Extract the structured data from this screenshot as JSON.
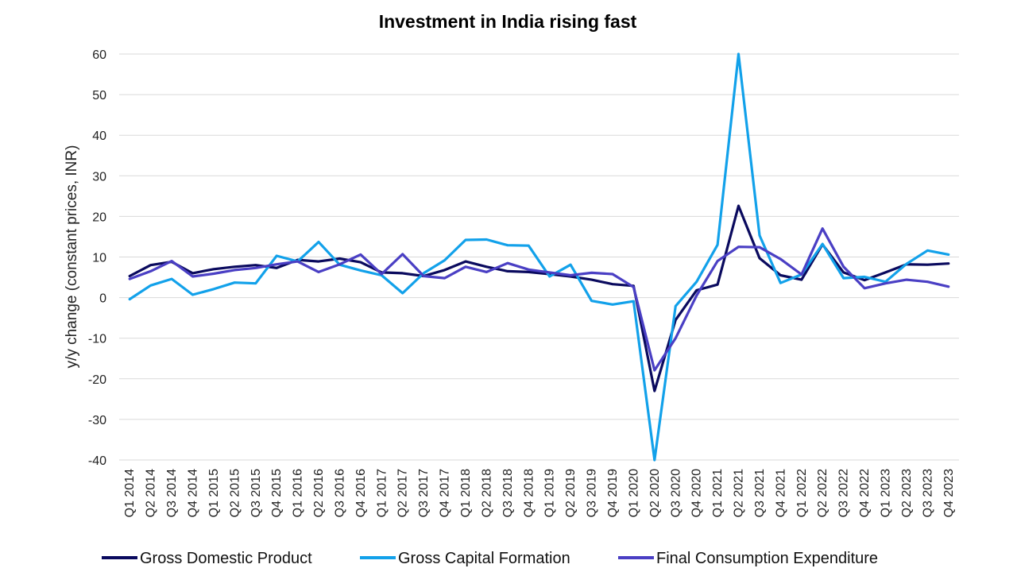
{
  "chart_data": {
    "type": "line",
    "title": "Investment in India rising fast",
    "xlabel": "",
    "ylabel": "y/y change (constant prices, INR)",
    "ylim": [
      -40,
      60
    ],
    "yticks": [
      60,
      50,
      40,
      30,
      20,
      10,
      0,
      -10,
      -20,
      -30,
      -40
    ],
    "grid": "horizontal",
    "legend": "bottom",
    "categories": [
      "Q1 2014",
      "Q2 2014",
      "Q3 2014",
      "Q4 2014",
      "Q1 2015",
      "Q2 2015",
      "Q3 2015",
      "Q4 2015",
      "Q1 2016",
      "Q2 2016",
      "Q3 2016",
      "Q4 2016",
      "Q1 2017",
      "Q2 2017",
      "Q3 2017",
      "Q4 2017",
      "Q1 2018",
      "Q2 2018",
      "Q3 2018",
      "Q4 2018",
      "Q1 2019",
      "Q2 2019",
      "Q3 2019",
      "Q4 2019",
      "Q1 2020",
      "Q2 2020",
      "Q3 2020",
      "Q4 2020",
      "Q1 2021",
      "Q2 2021",
      "Q3 2021",
      "Q4 2021",
      "Q1 2022",
      "Q2 2022",
      "Q3 2022",
      "Q4 2022",
      "Q1 2023",
      "Q2 2023",
      "Q3 2023",
      "Q4 2023"
    ],
    "series": [
      {
        "name": "Gross Domestic Product",
        "color": "#0a0a5e",
        "values": [
          5.3,
          8.0,
          8.8,
          6.0,
          7.0,
          7.6,
          8.0,
          7.3,
          9.3,
          8.9,
          9.6,
          8.7,
          6.2,
          6.0,
          5.3,
          6.8,
          8.9,
          7.6,
          6.5,
          6.3,
          5.8,
          5.2,
          4.4,
          3.3,
          2.9,
          -23.0,
          -5.5,
          1.8,
          3.2,
          22.6,
          9.7,
          5.5,
          4.4,
          13.1,
          6.2,
          4.3,
          6.2,
          8.2,
          8.1,
          8.4
        ]
      },
      {
        "name": "Gross Capital Formation",
        "color": "#12a1ea",
        "values": [
          -0.4,
          3.0,
          4.6,
          0.7,
          2.1,
          3.7,
          3.5,
          10.3,
          8.9,
          13.7,
          8.1,
          6.7,
          5.5,
          1.1,
          6.0,
          9.2,
          14.2,
          14.3,
          12.9,
          12.8,
          5.2,
          8.1,
          -0.8,
          -1.7,
          -0.9,
          -40.0,
          -2.1,
          3.9,
          13.0,
          61.0,
          15.3,
          3.6,
          5.7,
          13.2,
          4.8,
          5.1,
          3.9,
          8.3,
          11.6,
          10.6
        ]
      },
      {
        "name": "Final Consumption Expenditure",
        "color": "#4a3fc4",
        "values": [
          4.6,
          6.5,
          9.0,
          5.2,
          5.9,
          6.8,
          7.3,
          8.2,
          8.9,
          6.3,
          8.2,
          10.6,
          5.8,
          10.7,
          5.3,
          4.8,
          7.6,
          6.3,
          8.5,
          6.9,
          6.2,
          5.5,
          6.1,
          5.8,
          2.6,
          -17.9,
          -10.0,
          0.5,
          9.0,
          12.5,
          12.4,
          9.5,
          5.7,
          17.0,
          7.6,
          2.3,
          3.5,
          4.4,
          3.9,
          2.7
        ]
      }
    ]
  }
}
